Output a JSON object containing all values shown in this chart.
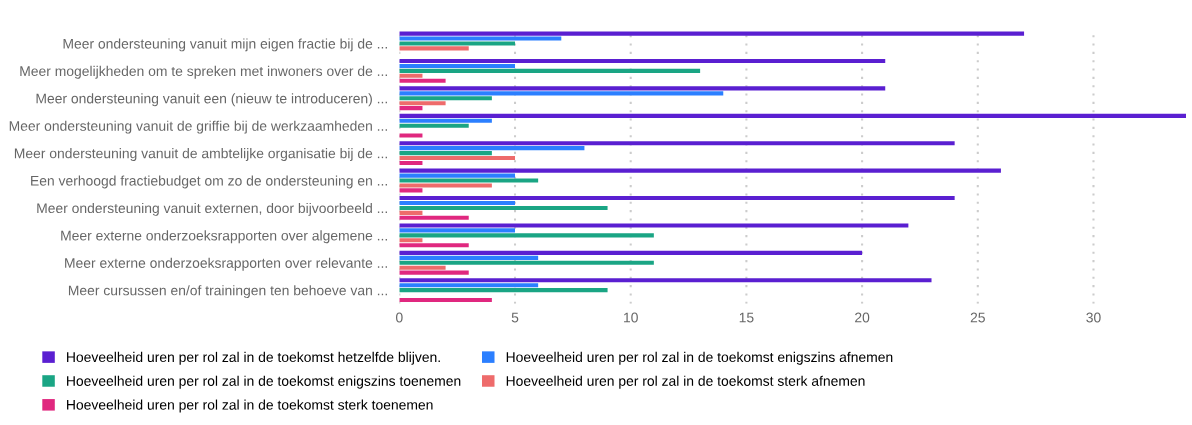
{
  "chart_data": {
    "type": "bar",
    "orientation": "horizontal",
    "categories": [
      "Meer ondersteuning vanuit mijn eigen fractie bij de ...",
      "Meer mogelijkheden om te spreken met inwoners over de ...",
      "Meer ondersteuning vanuit een (nieuw te introduceren) ...",
      "Meer ondersteuning vanuit de griffie bij de werkzaamheden ...",
      "Meer ondersteuning vanuit de ambtelijke organisatie bij de ...",
      "Een verhoogd fractiebudget om zo de ondersteuning en ...",
      "Meer ondersteuning vanuit externen, door bijvoorbeeld ...",
      "Meer externe onderzoeksrapporten over algemene ...",
      "Meer externe onderzoeksrapporten over relevante ...",
      "Meer cursussen en/of trainingen ten behoeve van ..."
    ],
    "series": [
      {
        "name": "Hoeveelheid uren per rol zal in de toekomst hetzelfde blijven.",
        "color": "#5a1fd1",
        "values": [
          27,
          21,
          21,
          34,
          24,
          26,
          24,
          22,
          20,
          23
        ]
      },
      {
        "name": "Hoeveelheid uren per rol zal in de toekomst enigszins afnemen",
        "color": "#2b7fff",
        "values": [
          7,
          5,
          14,
          4,
          8,
          5,
          5,
          5,
          6,
          6
        ]
      },
      {
        "name": "Hoeveelheid uren per rol zal in de toekomst enigszins toenemen",
        "color": "#1aa584",
        "values": [
          5,
          13,
          4,
          3,
          4,
          6,
          9,
          11,
          11,
          9
        ]
      },
      {
        "name": "Hoeveelheid uren per rol zal in de toekomst sterk afnemen",
        "color": "#ee6b6b",
        "values": [
          3,
          1,
          2,
          0,
          5,
          4,
          1,
          1,
          2,
          0
        ]
      },
      {
        "name": "Hoeveelheid uren per rol zal in de toekomst sterk toenemen",
        "color": "#e0287f",
        "values": [
          0,
          2,
          1,
          1,
          1,
          1,
          3,
          3,
          3,
          4
        ]
      }
    ],
    "xlim": [
      0,
      34
    ],
    "xticks": [
      0,
      5,
      10,
      15,
      20,
      25,
      30
    ],
    "grid": "x",
    "legend": "bottom"
  }
}
